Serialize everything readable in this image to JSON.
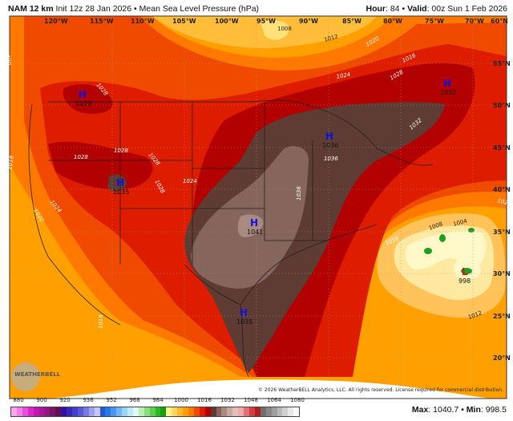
{
  "header": {
    "model": "NAM 12 km",
    "init": "Init 12z 28 Jan 2026",
    "separator": "•",
    "product": "Mean Sea Level Pressure (hPa)",
    "hour_label": "Hour",
    "hour": "84",
    "valid_label": "Valid",
    "valid": "00z Sun 1 Feb 2026"
  },
  "map": {
    "longitude_labels": [
      "120°W",
      "115°W",
      "110°W",
      "105°W",
      "100°W",
      "95°W",
      "90°W",
      "85°W",
      "80°W",
      "75°W",
      "70°W",
      "60°N"
    ],
    "latitude_labels": [
      "55°N",
      "50°N",
      "45°N",
      "40°N",
      "35°N",
      "30°N",
      "25°N",
      "20°N"
    ],
    "contour_labels": [
      "1020",
      "1016",
      "1020",
      "1024",
      "1028",
      "1028",
      "1028",
      "1028",
      "1028",
      "1024",
      "1036",
      "1024",
      "1016",
      "1020",
      "1028",
      "1032",
      "1036",
      "1012",
      "1008",
      "1004",
      "1012",
      "1016",
      "1020",
      "1016",
      "1008"
    ],
    "pressure_centers": [
      {
        "type": "H",
        "value": "1029",
        "color": "#1010e0"
      },
      {
        "type": "H",
        "value": "1035",
        "color": "#1010e0"
      },
      {
        "type": "H",
        "value": "1041",
        "color": "#1010e0"
      },
      {
        "type": "H",
        "value": "1035",
        "color": "#1010e0"
      },
      {
        "type": "H",
        "value": "1036",
        "color": "#1010e0"
      },
      {
        "type": "H",
        "value": "1032",
        "color": "#1010e0"
      },
      {
        "type": "L",
        "value": "998",
        "color": "#e01010"
      }
    ],
    "logo_text": "WeatherBELL",
    "copyright": "© 2026 WeatherBELL Analytics, LLC. All rights reserved. License required for commercial distribution."
  },
  "colorbar": {
    "unit": "hPa",
    "tick_labels": [
      "880",
      "900",
      "920",
      "936",
      "952",
      "968",
      "984",
      "1000",
      "1016",
      "1032",
      "1048",
      "1064",
      "1080"
    ],
    "colors": [
      "#f7a8f0",
      "#f080e8",
      "#e850d8",
      "#d828c8",
      "#c018b0",
      "#a81898",
      "#901880",
      "#781468",
      "#601050",
      "#3010a0",
      "#3828b8",
      "#4040c8",
      "#5858d8",
      "#7878e0",
      "#a0a0ee",
      "#c8c8f8",
      "#1c5cd8",
      "#2a78e8",
      "#4898f0",
      "#70b8f4",
      "#98d4f8",
      "#c0eaf8",
      "#e4f8fc",
      "#b8f0b0",
      "#88e078",
      "#58d048",
      "#28b828",
      "#10a010",
      "#fff090",
      "#ffd860",
      "#ffb830",
      "#ffa000",
      "#ff7800",
      "#f04a00",
      "#dd1c00",
      "#b30000",
      "#5e3b33",
      "#85655c",
      "#a88a80",
      "#c8a8a0",
      "#e0c0b8",
      "#f0a8a8",
      "#e07070",
      "#d04040",
      "#b02020",
      "#707070",
      "#888888",
      "#a0a0a0",
      "#b8b8b8",
      "#d0d0d0",
      "#e8e8e8",
      "#fafafa"
    ]
  },
  "stats": {
    "max_label": "Max",
    "max": "1040.7",
    "min_label": "Min",
    "min": "998.5"
  }
}
